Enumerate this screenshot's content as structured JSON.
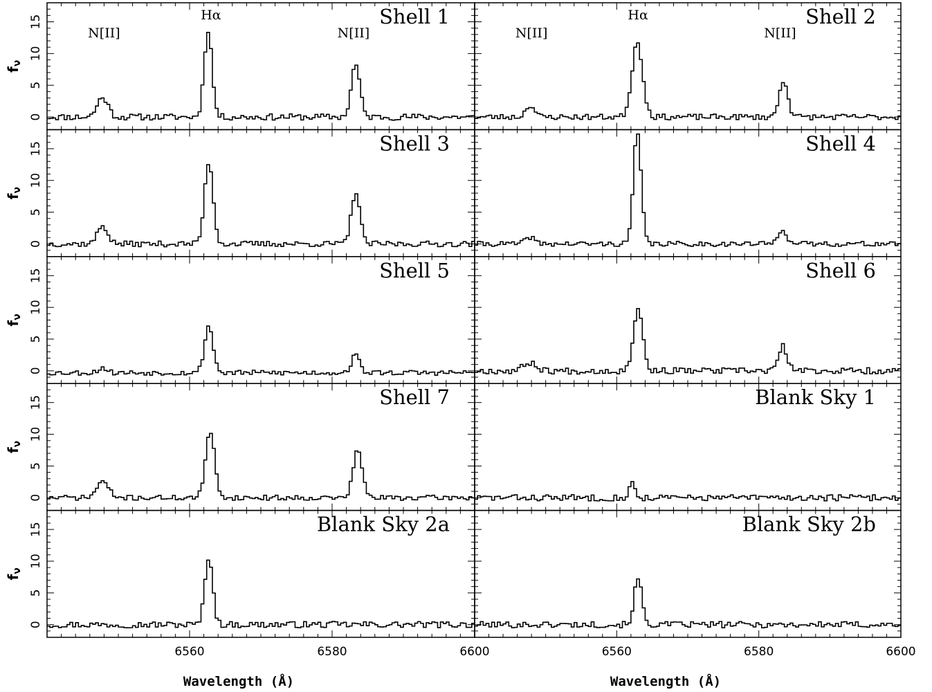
{
  "chart_data": {
    "type": "line",
    "layout": "5 rows x 2 columns of spectra panels sharing axes",
    "xlabel": "Wavelength (Å)",
    "ylabel": "f",
    "ylabel_sub": "ν",
    "xlim": [
      6540,
      6600
    ],
    "ylim": [
      -2,
      18
    ],
    "xticks": [
      6560,
      6580,
      6600
    ],
    "yticks": [
      0,
      5,
      10,
      15
    ],
    "grid": false,
    "line_labels": [
      {
        "text": "N[II]",
        "wavelength": 6548
      },
      {
        "text": "Hα",
        "wavelength": 6563
      },
      {
        "text": "N[II]",
        "wavelength": 6583
      }
    ],
    "panels": [
      {
        "name": "Shell 1",
        "baseline": 0,
        "noise": 0.5,
        "seed": 11,
        "lines": [
          {
            "center": 6547.8,
            "sigma": 0.75,
            "amp": 3.1
          },
          {
            "center": 6562.6,
            "sigma": 0.55,
            "amp": 13.8
          },
          {
            "center": 6583.3,
            "sigma": 0.6,
            "amp": 8.3
          }
        ]
      },
      {
        "name": "Shell 2",
        "baseline": 0,
        "noise": 0.45,
        "seed": 23,
        "lines": [
          {
            "center": 6547.8,
            "sigma": 0.6,
            "amp": 1.9
          },
          {
            "center": 6562.9,
            "sigma": 0.75,
            "amp": 11.8
          },
          {
            "center": 6583.5,
            "sigma": 0.6,
            "amp": 5.8
          }
        ]
      },
      {
        "name": "Shell 3",
        "baseline": 0,
        "noise": 0.45,
        "seed": 37,
        "lines": [
          {
            "center": 6547.8,
            "sigma": 0.7,
            "amp": 2.9
          },
          {
            "center": 6562.7,
            "sigma": 0.6,
            "amp": 13.0
          },
          {
            "center": 6583.3,
            "sigma": 0.6,
            "amp": 8.2
          }
        ]
      },
      {
        "name": "Shell 4",
        "baseline": 0,
        "noise": 0.4,
        "seed": 41,
        "lines": [
          {
            "center": 6547.8,
            "sigma": 0.6,
            "amp": 1.1
          },
          {
            "center": 6562.9,
            "sigma": 0.55,
            "amp": 17.5
          },
          {
            "center": 6583.3,
            "sigma": 0.6,
            "amp": 2.4
          }
        ]
      },
      {
        "name": "Shell 5",
        "baseline": -0.3,
        "noise": 0.4,
        "seed": 53,
        "lines": [
          {
            "center": 6547.8,
            "sigma": 0.6,
            "amp": 0.8
          },
          {
            "center": 6562.7,
            "sigma": 0.6,
            "amp": 7.4
          },
          {
            "center": 6583.3,
            "sigma": 0.6,
            "amp": 2.7
          }
        ]
      },
      {
        "name": "Shell 6",
        "baseline": 0,
        "noise": 0.5,
        "seed": 67,
        "lines": [
          {
            "center": 6547.8,
            "sigma": 0.9,
            "amp": 1.3
          },
          {
            "center": 6563.0,
            "sigma": 0.65,
            "amp": 10.0
          },
          {
            "center": 6583.4,
            "sigma": 0.6,
            "amp": 3.8
          }
        ]
      },
      {
        "name": "Shell 7",
        "baseline": 0,
        "noise": 0.4,
        "seed": 71,
        "lines": [
          {
            "center": 6547.8,
            "sigma": 0.8,
            "amp": 2.6
          },
          {
            "center": 6562.9,
            "sigma": 0.65,
            "amp": 10.2
          },
          {
            "center": 6583.6,
            "sigma": 0.65,
            "amp": 7.4
          }
        ]
      },
      {
        "name": "Blank Sky 1",
        "baseline": 0,
        "noise": 0.5,
        "seed": 83,
        "lines": [
          {
            "center": 6562.2,
            "sigma": 0.4,
            "amp": 2.3
          }
        ]
      },
      {
        "name": "Blank Sky 2a",
        "baseline": 0,
        "noise": 0.5,
        "seed": 97,
        "lines": [
          {
            "center": 6562.7,
            "sigma": 0.55,
            "amp": 10.8
          }
        ]
      },
      {
        "name": "Blank Sky 2b",
        "baseline": 0,
        "noise": 0.5,
        "seed": 101,
        "lines": [
          {
            "center": 6563.0,
            "sigma": 0.55,
            "amp": 7.2
          }
        ]
      }
    ]
  }
}
